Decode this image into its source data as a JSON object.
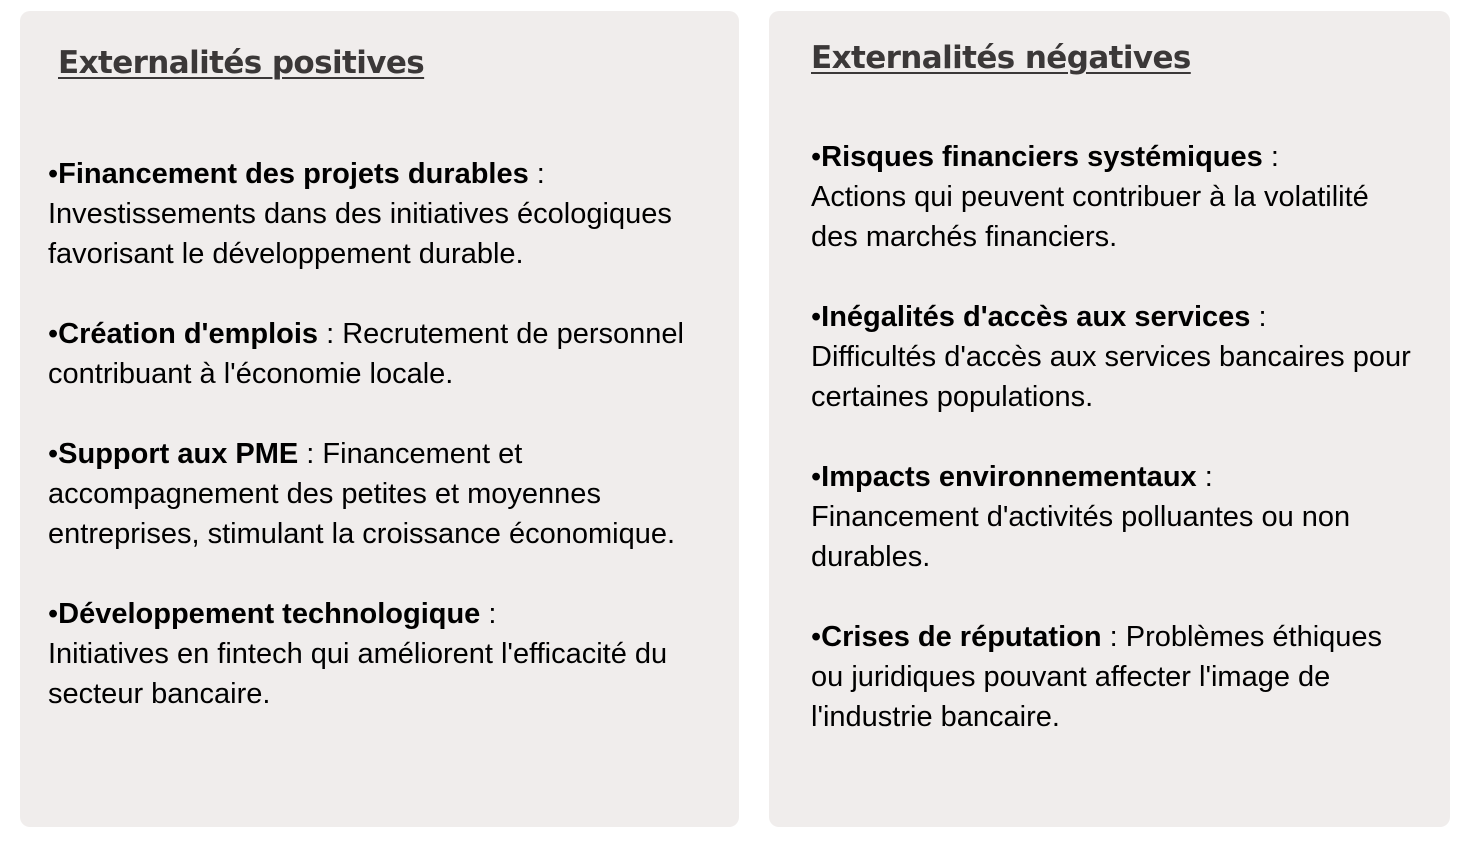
{
  "left_panel": {
    "heading": "Externalités positives",
    "items": [
      {
        "bullet": "•",
        "title": "Financement des projets durables",
        "sep": " : ",
        "text": "Investissements dans des initiatives écologiques favorisant le développement durable."
      },
      {
        "bullet": "•",
        "title": "Création d'emplois",
        "sep": " : ",
        "text": "Recrutement de personnel contribuant à l'économie locale."
      },
      {
        "bullet": "•",
        "title": "Support aux PME",
        "sep": " : ",
        "text": "Financement et accompagnement des petites et moyennes entreprises, stimulant la croissance économique."
      },
      {
        "bullet": "•",
        "title": "Développement technologique",
        "sep": " : ",
        "text": "Initiatives en fintech qui améliorent l'efficacité du secteur bancaire."
      }
    ]
  },
  "right_panel": {
    "heading": "Externalités négatives",
    "items": [
      {
        "bullet": "•",
        "title": "Risques financiers systémiques",
        "sep": " : ",
        "text": "Actions qui peuvent contribuer à la volatilité des marchés financiers."
      },
      {
        "bullet": "•",
        "title": "Inégalités d'accès aux services",
        "sep": " : ",
        "text": "Difficultés d'accès aux services bancaires pour certaines populations."
      },
      {
        "bullet": "•",
        "title": "Impacts environnementaux",
        "sep": " : ",
        "text": "Financement d'activités polluantes ou non durables."
      },
      {
        "bullet": "•",
        "title": "Crises de réputation",
        "sep": " : ",
        "text": "Problèmes éthiques ou juridiques pouvant affecter l'image de l'industrie bancaire."
      }
    ]
  },
  "colors": {
    "panel_background": "#f0edec",
    "heading_text": "#3b3838",
    "body_text": "#000000"
  }
}
